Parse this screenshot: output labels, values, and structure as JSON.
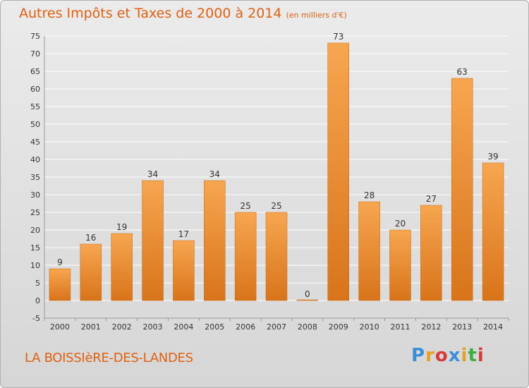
{
  "title": "Autres Impôts et Taxes de 2000 à 2014",
  "title_unit": "(en milliers d'€)",
  "place_name": "LA BOISSIèRE-DES-LANDES",
  "logo": {
    "text": "Proxiti",
    "letters": [
      "P",
      "r",
      "o",
      "x",
      "i",
      "t",
      "i"
    ],
    "colors": [
      "#3a8fd8",
      "#e8a020",
      "#d83a3a",
      "#3a8fd8",
      "#e8a020",
      "#3ab040",
      "#d83a3a"
    ]
  },
  "colors": {
    "title": "#e06010",
    "bar_top": "#f7a650",
    "bar_bottom": "#d8741a",
    "grid": "#ffffff",
    "axis_text": "#333333"
  },
  "chart_data": {
    "type": "bar",
    "categories": [
      "2000",
      "2001",
      "2002",
      "2003",
      "2004",
      "2005",
      "2006",
      "2007",
      "2008",
      "2009",
      "2010",
      "2011",
      "2012",
      "2013",
      "2014"
    ],
    "values": [
      9,
      16,
      19,
      34,
      17,
      34,
      25,
      25,
      0,
      73,
      28,
      20,
      27,
      63,
      39
    ],
    "ylim": [
      -5,
      75
    ],
    "yticks": [
      -5,
      0,
      5,
      10,
      15,
      20,
      25,
      30,
      35,
      40,
      45,
      50,
      55,
      60,
      65,
      70,
      75
    ],
    "grid": true,
    "xlabel": "",
    "ylabel": ""
  }
}
